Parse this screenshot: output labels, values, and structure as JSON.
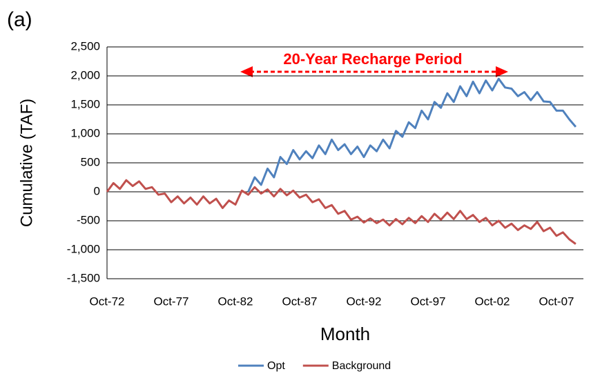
{
  "chart_data": {
    "type": "line",
    "panel_label": "(a)",
    "annotation": "20-Year Recharge Period",
    "x_label": "Month",
    "y_label": "Cumulative (TAF)",
    "x": [
      "Oct-72",
      "Apr-73",
      "Oct-73",
      "Apr-74",
      "Oct-74",
      "Apr-75",
      "Oct-75",
      "Apr-76",
      "Oct-76",
      "Apr-77",
      "Oct-77",
      "Apr-78",
      "Oct-78",
      "Apr-79",
      "Oct-79",
      "Apr-80",
      "Oct-80",
      "Apr-81",
      "Oct-81",
      "Apr-82",
      "Oct-82",
      "Apr-83",
      "Oct-83",
      "Apr-84",
      "Oct-84",
      "Apr-85",
      "Oct-85",
      "Apr-86",
      "Oct-86",
      "Apr-87",
      "Oct-87",
      "Apr-88",
      "Oct-88",
      "Apr-89",
      "Oct-89",
      "Apr-90",
      "Oct-90",
      "Apr-91",
      "Oct-91",
      "Apr-92",
      "Oct-92",
      "Apr-93",
      "Oct-93",
      "Apr-94",
      "Oct-94",
      "Apr-95",
      "Oct-95",
      "Apr-96",
      "Oct-96",
      "Apr-97",
      "Oct-97",
      "Apr-98",
      "Oct-98",
      "Apr-99",
      "Oct-99",
      "Apr-00",
      "Oct-00",
      "Apr-01",
      "Oct-01",
      "Apr-02",
      "Oct-02",
      "Apr-03",
      "Oct-03",
      "Apr-04",
      "Oct-04",
      "Apr-05",
      "Oct-05",
      "Apr-06",
      "Oct-06",
      "Apr-07",
      "Oct-07",
      "Apr-08",
      "Oct-08",
      "Apr-09"
    ],
    "xticks": [
      "Oct-72",
      "Oct-77",
      "Oct-82",
      "Oct-87",
      "Oct-92",
      "Oct-97",
      "Oct-02",
      "Oct-07"
    ],
    "series": [
      {
        "name": "Opt",
        "color": "#4f81bd",
        "values": [
          null,
          null,
          null,
          null,
          null,
          null,
          null,
          null,
          null,
          null,
          null,
          null,
          null,
          null,
          null,
          null,
          null,
          null,
          null,
          null,
          null,
          null,
          0,
          250,
          120,
          400,
          250,
          600,
          480,
          720,
          560,
          700,
          580,
          800,
          650,
          900,
          720,
          820,
          650,
          780,
          600,
          800,
          700,
          900,
          750,
          1050,
          950,
          1200,
          1100,
          1400,
          1250,
          1550,
          1450,
          1700,
          1550,
          1820,
          1650,
          1900,
          1700,
          1920,
          1750,
          1950,
          1800,
          1780,
          1650,
          1720,
          1580,
          1720,
          1560,
          1550,
          1400,
          1400,
          1250,
          1120
        ]
      },
      {
        "name": "Background",
        "color": "#c0504d",
        "values": [
          0,
          150,
          50,
          200,
          100,
          180,
          50,
          80,
          -50,
          -30,
          -180,
          -80,
          -200,
          -100,
          -220,
          -80,
          -200,
          -120,
          -280,
          -150,
          -220,
          20,
          -50,
          80,
          -30,
          40,
          -80,
          50,
          -60,
          20,
          -100,
          -50,
          -180,
          -130,
          -280,
          -230,
          -380,
          -330,
          -480,
          -430,
          -530,
          -460,
          -540,
          -480,
          -580,
          -470,
          -560,
          -450,
          -540,
          -420,
          -520,
          -380,
          -480,
          -360,
          -470,
          -330,
          -470,
          -400,
          -520,
          -450,
          -580,
          -500,
          -620,
          -550,
          -660,
          -580,
          -640,
          -520,
          -680,
          -620,
          -760,
          -700,
          -820,
          -900
        ]
      }
    ],
    "ylim": [
      -1500,
      2500
    ],
    "yticks": [
      {
        "value": 2500,
        "label": "2,500"
      },
      {
        "value": 2000,
        "label": "2,000"
      },
      {
        "value": 1500,
        "label": "1,500"
      },
      {
        "value": 1000,
        "label": "1,000"
      },
      500,
      0,
      -500,
      {
        "value": -1000,
        "label": "-1,000"
      },
      {
        "value": -1500,
        "label": "-1,500"
      }
    ],
    "grid": true,
    "legend": "bottom"
  }
}
